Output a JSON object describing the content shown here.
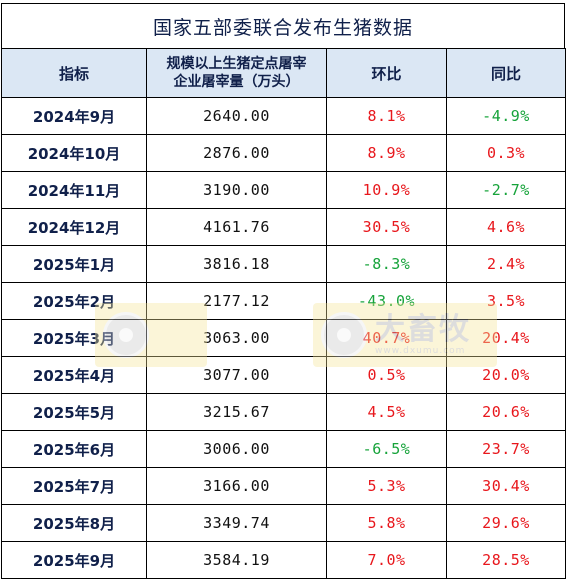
{
  "title": "国家五部委联合发布生猪数据",
  "header": {
    "indicator": "指标",
    "value_line1": "规模以上生猪定点屠宰",
    "value_line2": "企业屠宰量（万头）",
    "mom": "环比",
    "yoy": "同比"
  },
  "rows": [
    {
      "month": "2024年9月",
      "value": "2640.00",
      "mom": "8.1%",
      "yoy": "-4.9%"
    },
    {
      "month": "2024年10月",
      "value": "2876.00",
      "mom": "8.9%",
      "yoy": "0.3%"
    },
    {
      "month": "2024年11月",
      "value": "3190.00",
      "mom": "10.9%",
      "yoy": "-2.7%"
    },
    {
      "month": "2024年12月",
      "value": "4161.76",
      "mom": "30.5%",
      "yoy": "4.6%"
    },
    {
      "month": "2025年1月",
      "value": "3816.18",
      "mom": "-8.3%",
      "yoy": "2.4%"
    },
    {
      "month": "2025年2月",
      "value": "2177.12",
      "mom": "-43.0%",
      "yoy": "3.5%"
    },
    {
      "month": "2025年3月",
      "value": "3063.00",
      "mom": "40.7%",
      "yoy": "20.4%"
    },
    {
      "month": "2025年4月",
      "value": "3077.00",
      "mom": "0.5%",
      "yoy": "20.0%"
    },
    {
      "month": "2025年5月",
      "value": "3215.67",
      "mom": "4.5%",
      "yoy": "20.6%"
    },
    {
      "month": "2025年6月",
      "value": "3006.00",
      "mom": "-6.5%",
      "yoy": "23.7%"
    },
    {
      "month": "2025年7月",
      "value": "3166.00",
      "mom": "5.3%",
      "yoy": "30.4%"
    },
    {
      "month": "2025年8月",
      "value": "3349.74",
      "mom": "5.8%",
      "yoy": "29.6%"
    },
    {
      "month": "2025年9月",
      "value": "3584.19",
      "mom": "7.0%",
      "yoy": "28.5%"
    }
  ],
  "colors": {
    "positive": "#e8171c",
    "negative": "#16a33a",
    "header_bg": "#dbe7f4"
  },
  "watermark": {
    "text": "大畜牧",
    "url": "www.dxumu.com"
  }
}
